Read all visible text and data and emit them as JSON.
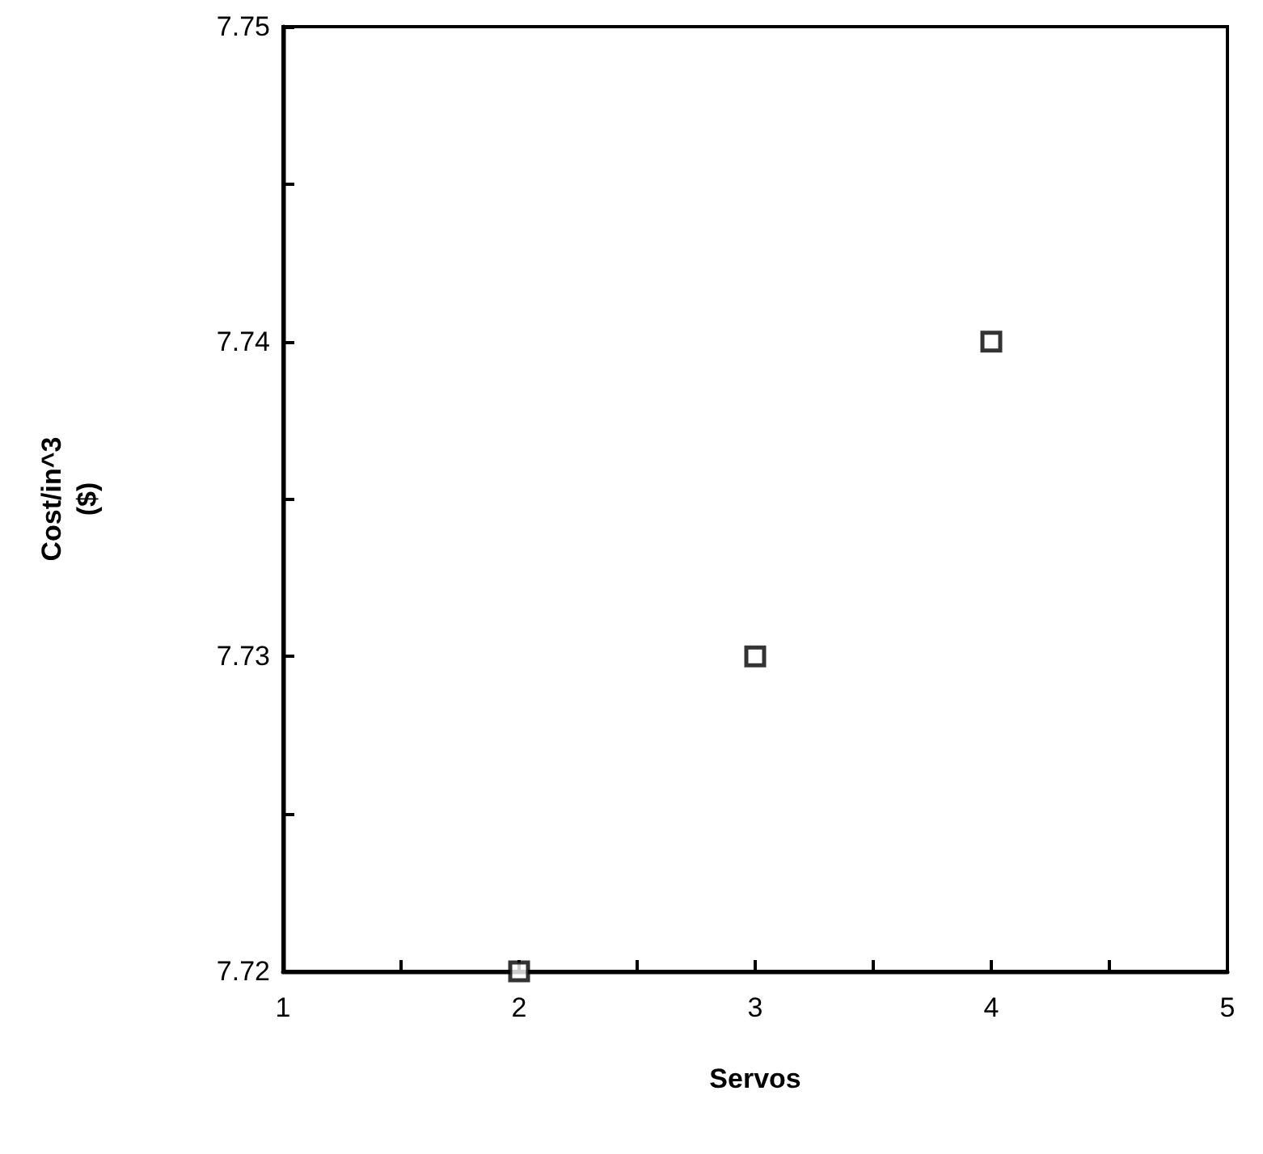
{
  "chart_data": {
    "type": "scatter",
    "xlabel": "Servos",
    "ylabel": "Cost/in^3\n($)",
    "x": [
      2,
      3,
      4
    ],
    "values": [
      7.72,
      7.73,
      7.74
    ],
    "color": "#000000",
    "marker": "square",
    "xlim": [
      1,
      5
    ],
    "xticks": [
      1,
      {
        "value": 1.5,
        "label": null
      },
      2,
      {
        "value": 2.5,
        "label": null
      },
      3,
      {
        "value": 3.5,
        "label": null
      },
      4,
      {
        "value": 4.5,
        "label": null
      },
      5
    ],
    "ylim": [
      7.72,
      7.75
    ],
    "yticks": [
      7.72,
      {
        "value": 7.725,
        "label": null
      },
      7.73,
      {
        "value": 7.735,
        "label": null
      },
      7.74,
      {
        "value": 7.745,
        "label": null
      },
      7.75
    ],
    "grid": false
  }
}
